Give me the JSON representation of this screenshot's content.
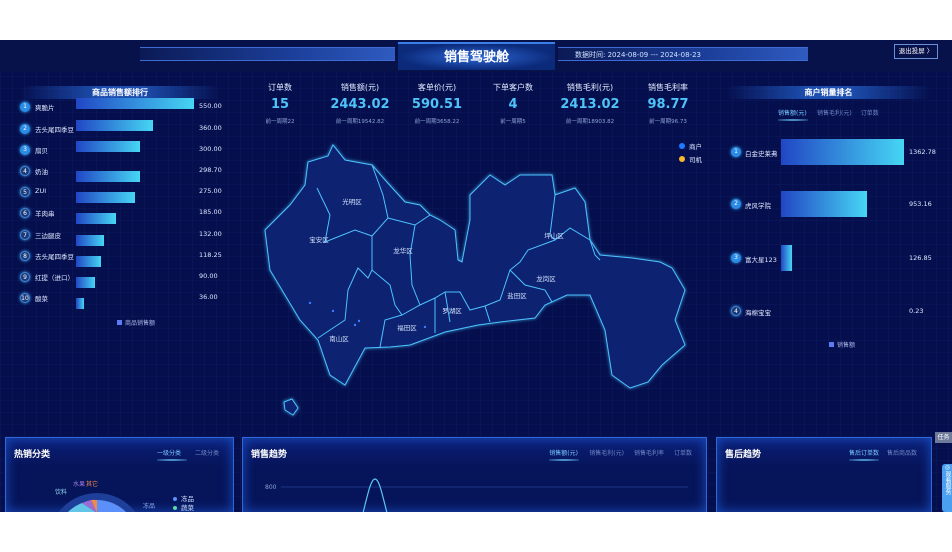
{
  "header": {
    "title": "销售驾驶舱",
    "date_range": "数据时间: 2024-08-09 --- 2024-08-23",
    "exit_button": "退出投屏 〉"
  },
  "product_ranking": {
    "title": "商品销售额排行",
    "legend": "商品销售额",
    "max": 550,
    "items": [
      {
        "rank": "1",
        "name": "爽脆片",
        "value": 550.0,
        "value_text": "550.00"
      },
      {
        "rank": "2",
        "name": "去头尾四季豆",
        "value": 360.0,
        "value_text": "360.00"
      },
      {
        "rank": "3",
        "name": "扇贝",
        "value": 300.0,
        "value_text": "300.00"
      },
      {
        "rank": "4",
        "name": "奶油",
        "value": 298.7,
        "value_text": "298.70"
      },
      {
        "rank": "5",
        "name": "ZUI",
        "value": 275.0,
        "value_text": "275.00"
      },
      {
        "rank": "6",
        "name": "羊肉串",
        "value": 185.0,
        "value_text": "185.00"
      },
      {
        "rank": "7",
        "name": "三边腿皮",
        "value": 132.0,
        "value_text": "132.00"
      },
      {
        "rank": "8",
        "name": "去头尾四季豆",
        "value": 118.25,
        "value_text": "118.25"
      },
      {
        "rank": "9",
        "name": "红提（进口）",
        "value": 90.0,
        "value_text": "90.00"
      },
      {
        "rank": "10",
        "name": "酸菜",
        "value": 36.0,
        "value_text": "36.00"
      }
    ]
  },
  "kpis": [
    {
      "label": "订单数",
      "value": "15",
      "compare": "前一周期22"
    },
    {
      "label": "销售额(元)",
      "value": "2443.02",
      "compare": "前一周期19542.82"
    },
    {
      "label": "客单价(元)",
      "value": "590.51",
      "compare": "前一周期3658.22"
    },
    {
      "label": "下单客户数",
      "value": "4",
      "compare": "前一周期5"
    },
    {
      "label": "销售毛利(元)",
      "value": "2413.02",
      "compare": "前一周期18903.82"
    },
    {
      "label": "销售毛利率",
      "value": "98.77",
      "compare": "前一周期96.73"
    }
  ],
  "map": {
    "legend": [
      {
        "label": "商户",
        "color": "#1e7bff"
      },
      {
        "label": "司机",
        "color": "#f5b82e"
      }
    ],
    "districts": [
      "光明区",
      "宝安区",
      "龙华区",
      "坪山区",
      "龙岗区",
      "盐田区",
      "罗湖区",
      "福田区",
      "南山区"
    ]
  },
  "merchant_ranking": {
    "title": "商户销量排名",
    "tabs": [
      "销售额(元)",
      "销售毛利(元)",
      "订单数"
    ],
    "active_tab": 0,
    "legend": "销售额",
    "max": 1362.78,
    "items": [
      {
        "rank": "1",
        "name": "白金史莱弗",
        "value": 1362.78,
        "value_text": "1362.78"
      },
      {
        "rank": "2",
        "name": "虎风学院",
        "value": 953.16,
        "value_text": "953.16"
      },
      {
        "rank": "3",
        "name": "富大星123",
        "value": 126.85,
        "value_text": "126.85"
      },
      {
        "rank": "4",
        "name": "海棉宝宝",
        "value": 0.23,
        "value_text": "0.23"
      }
    ]
  },
  "hot_category": {
    "title": "热销分类",
    "tabs": [
      "一级分类",
      "二级分类"
    ],
    "active_tab": 0,
    "slice_labels": [
      "水果",
      "其它",
      "饮料",
      "冻品"
    ],
    "legend": [
      "冻品",
      "蔬菜"
    ]
  },
  "sales_trend": {
    "title": "销售趋势",
    "tabs": [
      "销售额(元)",
      "销售毛利(元)",
      "销售毛利率",
      "订单数"
    ],
    "active_tab": 0,
    "y_tick": "800"
  },
  "after_sales": {
    "title": "售后趋势",
    "tabs": [
      "售后订单数",
      "售后商品数"
    ],
    "active_tab": 0
  },
  "side": {
    "task": "任务",
    "service": "◎观看服务"
  }
}
